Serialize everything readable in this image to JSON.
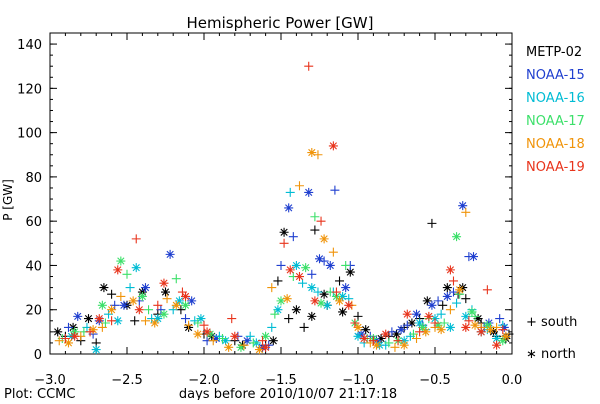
{
  "page": {
    "footer": "Plot: CCMC"
  },
  "chart_data": {
    "type": "scatter",
    "title": "Hemispheric Power [GW]",
    "xlabel": "days before 2010/10/07 21:17:18",
    "ylabel": "P [GW]",
    "xlim": [
      -3.0,
      0.0
    ],
    "ylim": [
      0,
      145
    ],
    "x_ticks": [
      -3.0,
      -2.5,
      -2.0,
      -1.5,
      -1.0,
      -0.5,
      0.0
    ],
    "x_tick_labels": [
      "−3.0",
      "−2.5",
      "−2.0",
      "−1.5",
      "−1.0",
      "−0.5",
      "0.0"
    ],
    "y_ticks": [
      0,
      20,
      40,
      60,
      80,
      100,
      120,
      140
    ],
    "y_tick_labels": [
      "0",
      "20",
      "40",
      "60",
      "80",
      "100",
      "120",
      "140"
    ],
    "grid": false,
    "legend_position": "right",
    "markers": [
      {
        "name": "+ south",
        "symbol": "plus"
      },
      {
        "name": "∗ north",
        "symbol": "asterisk"
      }
    ],
    "series": [
      {
        "name": "METP-02",
        "color": "#000000",
        "south": [
          [
            -2.9,
            8
          ],
          [
            -2.8,
            6
          ],
          [
            -2.7,
            5
          ],
          [
            -2.6,
            27
          ],
          [
            -2.45,
            15
          ],
          [
            -2.3,
            18
          ],
          [
            -2.15,
            20
          ],
          [
            -2.0,
            9
          ],
          [
            -1.8,
            6
          ],
          [
            -1.6,
            4
          ],
          [
            -1.52,
            33
          ],
          [
            -1.45,
            16
          ],
          [
            -1.35,
            12
          ],
          [
            -1.28,
            56
          ],
          [
            -1.2,
            22
          ],
          [
            -1.12,
            33
          ],
          [
            -1.0,
            17
          ],
          [
            -0.9,
            6
          ],
          [
            -0.8,
            8
          ],
          [
            -0.7,
            12
          ],
          [
            -0.6,
            16
          ],
          [
            -0.52,
            59
          ],
          [
            -0.45,
            22
          ],
          [
            -0.35,
            27
          ],
          [
            -0.3,
            25
          ],
          [
            -0.2,
            14
          ],
          [
            -0.1,
            8
          ],
          [
            -0.02,
            9
          ]
        ],
        "north": [
          [
            -2.95,
            10
          ],
          [
            -2.85,
            12
          ],
          [
            -2.75,
            16
          ],
          [
            -2.65,
            30
          ],
          [
            -2.5,
            22
          ],
          [
            -2.4,
            28
          ],
          [
            -2.25,
            28
          ],
          [
            -2.1,
            12
          ],
          [
            -1.95,
            8
          ],
          [
            -1.75,
            4
          ],
          [
            -1.55,
            6
          ],
          [
            -1.48,
            55
          ],
          [
            -1.4,
            20
          ],
          [
            -1.3,
            17
          ],
          [
            -1.22,
            27
          ],
          [
            -1.1,
            19
          ],
          [
            -1.05,
            37
          ],
          [
            -0.95,
            11
          ],
          [
            -0.85,
            7
          ],
          [
            -0.75,
            9
          ],
          [
            -0.65,
            14
          ],
          [
            -0.55,
            24
          ],
          [
            -0.42,
            30
          ],
          [
            -0.32,
            30
          ],
          [
            -0.22,
            16
          ],
          [
            -0.12,
            10
          ],
          [
            -0.04,
            7
          ]
        ]
      },
      {
        "name": "NOAA-15",
        "color": "#1f3fcf",
        "south": [
          [
            -2.88,
            12
          ],
          [
            -2.72,
            9
          ],
          [
            -2.58,
            22
          ],
          [
            -2.42,
            24
          ],
          [
            -2.28,
            20
          ],
          [
            -2.12,
            16
          ],
          [
            -1.98,
            6
          ],
          [
            -1.78,
            8
          ],
          [
            -1.58,
            4
          ],
          [
            -1.5,
            40
          ],
          [
            -1.42,
            53
          ],
          [
            -1.3,
            36
          ],
          [
            -1.22,
            42
          ],
          [
            -1.15,
            74
          ],
          [
            -1.05,
            40
          ],
          [
            -0.92,
            8
          ],
          [
            -0.78,
            10
          ],
          [
            -0.68,
            13
          ],
          [
            -0.58,
            13
          ],
          [
            -0.48,
            24
          ],
          [
            -0.38,
            28
          ],
          [
            -0.28,
            44
          ],
          [
            -0.18,
            12
          ],
          [
            -0.08,
            16
          ]
        ],
        "north": [
          [
            -2.82,
            17
          ],
          [
            -2.68,
            15
          ],
          [
            -2.52,
            22
          ],
          [
            -2.38,
            30
          ],
          [
            -2.22,
            45
          ],
          [
            -2.08,
            24
          ],
          [
            -1.92,
            7
          ],
          [
            -1.72,
            6
          ],
          [
            -1.62,
            3
          ],
          [
            -1.45,
            66
          ],
          [
            -1.32,
            73
          ],
          [
            -1.25,
            43
          ],
          [
            -1.18,
            40
          ],
          [
            -1.08,
            30
          ],
          [
            -0.98,
            9
          ],
          [
            -0.88,
            6
          ],
          [
            -0.72,
            11
          ],
          [
            -0.62,
            18
          ],
          [
            -0.52,
            22
          ],
          [
            -0.42,
            26
          ],
          [
            -0.32,
            67
          ],
          [
            -0.25,
            44
          ],
          [
            -0.15,
            14
          ],
          [
            -0.05,
            12
          ]
        ]
      },
      {
        "name": "NOAA-16",
        "color": "#00bcd4",
        "south": [
          [
            -2.9,
            7
          ],
          [
            -2.76,
            12
          ],
          [
            -2.62,
            18
          ],
          [
            -2.48,
            30
          ],
          [
            -2.34,
            16
          ],
          [
            -2.2,
            20
          ],
          [
            -2.06,
            15
          ],
          [
            -1.9,
            8
          ],
          [
            -1.7,
            8
          ],
          [
            -1.56,
            12
          ],
          [
            -1.44,
            73
          ],
          [
            -1.36,
            32
          ],
          [
            -1.26,
            28
          ],
          [
            -1.16,
            28
          ],
          [
            -1.06,
            25
          ],
          [
            -0.96,
            5
          ],
          [
            -0.82,
            4
          ],
          [
            -0.66,
            8
          ],
          [
            -0.56,
            11
          ],
          [
            -0.46,
            18
          ],
          [
            -0.36,
            23
          ],
          [
            -0.26,
            20
          ],
          [
            -0.16,
            11
          ],
          [
            -0.06,
            13
          ]
        ],
        "north": [
          [
            -2.86,
            8
          ],
          [
            -2.7,
            2
          ],
          [
            -2.56,
            15
          ],
          [
            -2.44,
            39
          ],
          [
            -2.3,
            16
          ],
          [
            -2.16,
            24
          ],
          [
            -2.02,
            16
          ],
          [
            -1.86,
            6
          ],
          [
            -1.66,
            5
          ],
          [
            -1.52,
            20
          ],
          [
            -1.4,
            40
          ],
          [
            -1.3,
            30
          ],
          [
            -1.2,
            22
          ],
          [
            -1.1,
            26
          ],
          [
            -1.0,
            8
          ],
          [
            -0.86,
            4
          ],
          [
            -0.7,
            6
          ],
          [
            -0.6,
            14
          ],
          [
            -0.5,
            16
          ],
          [
            -0.4,
            12
          ],
          [
            -0.3,
            17
          ],
          [
            -0.2,
            10
          ],
          [
            -0.1,
            7
          ]
        ]
      },
      {
        "name": "NOAA-17",
        "color": "#3ce06a",
        "south": [
          [
            -2.92,
            7
          ],
          [
            -2.78,
            10
          ],
          [
            -2.64,
            14
          ],
          [
            -2.5,
            36
          ],
          [
            -2.36,
            20
          ],
          [
            -2.18,
            34
          ],
          [
            -2.04,
            14
          ],
          [
            -1.88,
            7
          ],
          [
            -1.68,
            5
          ],
          [
            -1.54,
            18
          ],
          [
            -1.42,
            35
          ],
          [
            -1.28,
            62
          ],
          [
            -1.18,
            28
          ],
          [
            -1.08,
            40
          ],
          [
            -0.94,
            7
          ],
          [
            -0.8,
            5
          ],
          [
            -0.64,
            9
          ],
          [
            -0.54,
            16
          ],
          [
            -0.44,
            14
          ],
          [
            -0.34,
            27
          ],
          [
            -0.24,
            17
          ],
          [
            -0.14,
            12
          ]
        ],
        "north": [
          [
            -2.84,
            10
          ],
          [
            -2.66,
            22
          ],
          [
            -2.54,
            42
          ],
          [
            -2.4,
            26
          ],
          [
            -2.26,
            18
          ],
          [
            -2.12,
            22
          ],
          [
            -1.96,
            9
          ],
          [
            -1.76,
            3
          ],
          [
            -1.6,
            8
          ],
          [
            -1.5,
            24
          ],
          [
            -1.34,
            39
          ],
          [
            -1.24,
            23
          ],
          [
            -1.14,
            26
          ],
          [
            -1.02,
            14
          ],
          [
            -0.9,
            7
          ],
          [
            -0.74,
            6
          ],
          [
            -0.58,
            12
          ],
          [
            -0.48,
            13
          ],
          [
            -0.36,
            53
          ],
          [
            -0.26,
            19
          ],
          [
            -0.16,
            13
          ],
          [
            -0.06,
            6
          ]
        ]
      },
      {
        "name": "NOAA-18",
        "color": "#f0940a",
        "south": [
          [
            -2.94,
            6
          ],
          [
            -2.8,
            8
          ],
          [
            -2.66,
            12
          ],
          [
            -2.54,
            26
          ],
          [
            -2.38,
            15
          ],
          [
            -2.24,
            25
          ],
          [
            -2.1,
            13
          ],
          [
            -1.94,
            6
          ],
          [
            -1.74,
            4
          ],
          [
            -1.56,
            30
          ],
          [
            -1.38,
            76
          ],
          [
            -1.26,
            90
          ],
          [
            -1.16,
            46
          ],
          [
            -1.04,
            22
          ],
          [
            -0.92,
            5
          ],
          [
            -0.76,
            3
          ],
          [
            -0.62,
            7
          ],
          [
            -0.5,
            12
          ],
          [
            -0.4,
            20
          ],
          [
            -0.3,
            64
          ],
          [
            -0.2,
            12
          ],
          [
            -0.1,
            12
          ]
        ],
        "north": [
          [
            -2.88,
            5
          ],
          [
            -2.72,
            11
          ],
          [
            -2.6,
            20
          ],
          [
            -2.46,
            24
          ],
          [
            -2.32,
            14
          ],
          [
            -2.18,
            22
          ],
          [
            -2.04,
            9
          ],
          [
            -1.84,
            3
          ],
          [
            -1.64,
            2
          ],
          [
            -1.46,
            25
          ],
          [
            -1.3,
            91
          ],
          [
            -1.22,
            52
          ],
          [
            -1.12,
            24
          ],
          [
            -1.0,
            12
          ],
          [
            -0.88,
            4
          ],
          [
            -0.7,
            4
          ],
          [
            -0.56,
            10
          ],
          [
            -0.46,
            11
          ],
          [
            -0.34,
            29
          ],
          [
            -0.24,
            13
          ],
          [
            -0.14,
            11
          ],
          [
            -0.04,
            8
          ]
        ]
      },
      {
        "name": "NOAA-19",
        "color": "#e8341c",
        "south": [
          [
            -2.9,
            7
          ],
          [
            -2.74,
            10
          ],
          [
            -2.6,
            15
          ],
          [
            -2.44,
            52
          ],
          [
            -2.3,
            22
          ],
          [
            -2.14,
            28
          ],
          [
            -2.0,
            13
          ],
          [
            -1.82,
            16
          ],
          [
            -1.62,
            6
          ],
          [
            -1.48,
            50
          ],
          [
            -1.32,
            130
          ],
          [
            -1.24,
            60
          ],
          [
            -1.14,
            28
          ],
          [
            -1.02,
            14
          ],
          [
            -0.9,
            6
          ],
          [
            -0.74,
            6
          ],
          [
            -0.6,
            10
          ],
          [
            -0.5,
            14
          ],
          [
            -0.38,
            33
          ],
          [
            -0.28,
            15
          ],
          [
            -0.16,
            29
          ],
          [
            -0.06,
            11
          ]
        ],
        "north": [
          [
            -2.84,
            8
          ],
          [
            -2.68,
            16
          ],
          [
            -2.56,
            38
          ],
          [
            -2.42,
            20
          ],
          [
            -2.26,
            32
          ],
          [
            -2.12,
            26
          ],
          [
            -1.98,
            10
          ],
          [
            -1.8,
            8
          ],
          [
            -1.6,
            3
          ],
          [
            -1.44,
            38
          ],
          [
            -1.38,
            35
          ],
          [
            -1.28,
            24
          ],
          [
            -1.16,
            94
          ],
          [
            -1.06,
            22
          ],
          [
            -0.96,
            7
          ],
          [
            -0.82,
            9
          ],
          [
            -0.68,
            18
          ],
          [
            -0.54,
            17
          ],
          [
            -0.4,
            38
          ],
          [
            -0.3,
            12
          ],
          [
            -0.2,
            10
          ],
          [
            -0.1,
            4
          ]
        ]
      }
    ]
  }
}
